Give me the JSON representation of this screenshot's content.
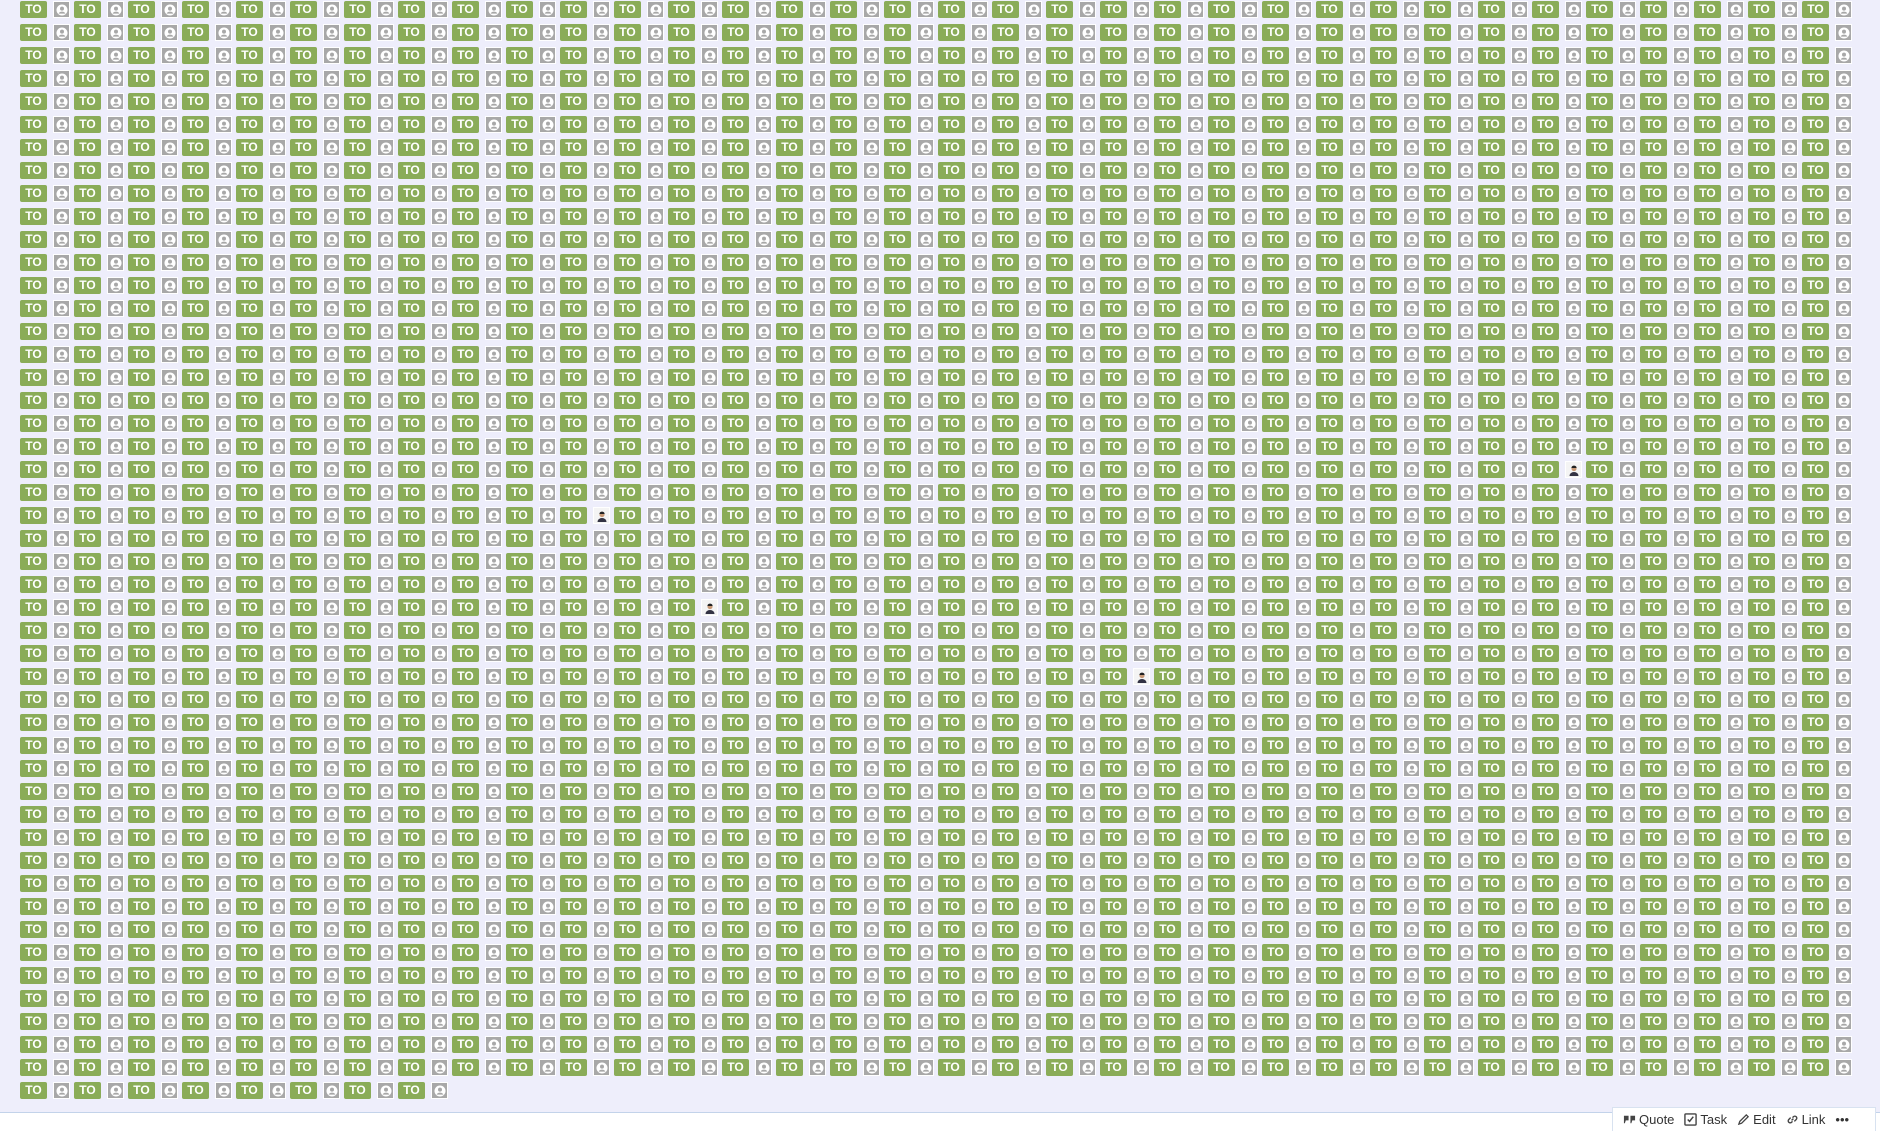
{
  "grid": {
    "badge_label": "TO",
    "entry_count": 1606,
    "per_row": 34,
    "photo_avatar_indices": [
      708,
      758,
      896,
      1006
    ],
    "colors": {
      "badge": "#8aac58",
      "avatar": "#a8a8a8",
      "background": "#eeeefb"
    }
  },
  "toolbar": {
    "quote": "Quote",
    "task": "Task",
    "edit": "Edit",
    "link": "Link",
    "more": "•••"
  }
}
